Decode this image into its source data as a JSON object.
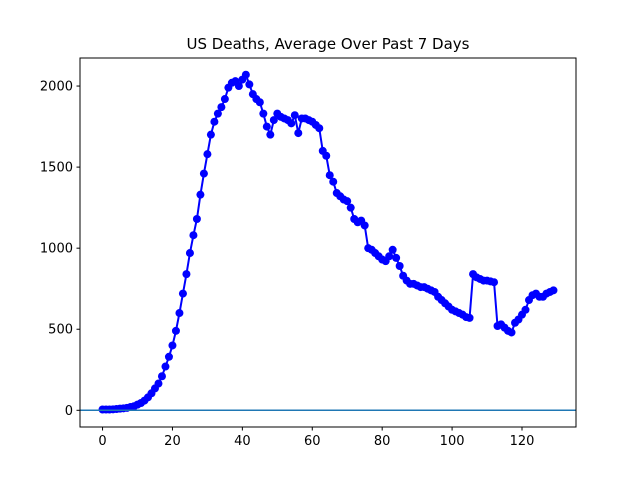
{
  "chart_data": {
    "type": "line",
    "title": "US Deaths, Average Over Past 7 Days",
    "x": [
      0,
      1,
      2,
      3,
      4,
      5,
      6,
      7,
      8,
      9,
      10,
      11,
      12,
      13,
      14,
      15,
      16,
      17,
      18,
      19,
      20,
      21,
      22,
      23,
      24,
      25,
      26,
      27,
      28,
      29,
      30,
      31,
      32,
      33,
      34,
      35,
      36,
      37,
      38,
      39,
      40,
      41,
      42,
      43,
      44,
      45,
      46,
      47,
      48,
      49,
      50,
      51,
      52,
      53,
      54,
      55,
      56,
      57,
      58,
      59,
      60,
      61,
      62,
      63,
      64,
      65,
      66,
      67,
      68,
      69,
      70,
      71,
      72,
      73,
      74,
      75,
      76,
      77,
      78,
      79,
      80,
      81,
      82,
      83,
      84,
      85,
      86,
      87,
      88,
      89,
      90,
      91,
      92,
      93,
      94,
      95,
      96,
      97,
      98,
      99,
      100,
      101,
      102,
      103,
      104,
      105,
      106,
      107,
      108,
      109,
      110,
      111,
      112,
      113,
      114,
      115,
      116,
      117,
      118,
      119,
      120,
      121,
      122,
      123,
      124,
      125,
      126,
      127,
      128,
      129
    ],
    "series": [
      {
        "color": "#0000ff",
        "values": [
          5,
          5,
          5,
          6,
          8,
          10,
          12,
          15,
          20,
          25,
          35,
          45,
          60,
          80,
          105,
          135,
          165,
          210,
          270,
          330,
          400,
          490,
          600,
          720,
          840,
          970,
          1080,
          1180,
          1330,
          1460,
          1580,
          1700,
          1780,
          1830,
          1870,
          1920,
          1990,
          2020,
          2030,
          2000,
          2040,
          2070,
          2010,
          1950,
          1920,
          1900,
          1830,
          1750,
          1700,
          1790,
          1830,
          1810,
          1800,
          1790,
          1770,
          1820,
          1710,
          1800,
          1800,
          1790,
          1780,
          1760,
          1740,
          1600,
          1570,
          1450,
          1410,
          1340,
          1320,
          1300,
          1290,
          1250,
          1180,
          1160,
          1170,
          1140,
          1000,
          990,
          970,
          950,
          930,
          920,
          950,
          990,
          940,
          890,
          830,
          800,
          780,
          780,
          770,
          760,
          760,
          750,
          740,
          730,
          700,
          680,
          660,
          640,
          620,
          610,
          600,
          590,
          575,
          570,
          840,
          820,
          810,
          800,
          800,
          795,
          790,
          520,
          530,
          510,
          490,
          480,
          540,
          560,
          590,
          620,
          680,
          710,
          720,
          700,
          700,
          720,
          730,
          740
        ]
      }
    ],
    "hline": 0,
    "hline_color": "#1f77b4",
    "xlim": [
      -6.45,
      135.45
    ],
    "xticks": [
      0,
      20,
      40,
      60,
      80,
      100,
      120
    ],
    "ylim": [
      -103,
      2173
    ],
    "yticks": [
      0,
      500,
      1000,
      1500,
      2000
    ]
  }
}
